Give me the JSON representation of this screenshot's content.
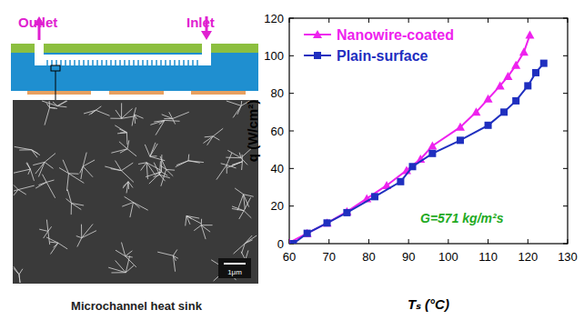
{
  "chart_data": {
    "type": "line",
    "xlabel": "Tₛ (°C)",
    "ylabel": "q (W/cm²)",
    "annotation": "G=571 kg/m²s",
    "xlim": [
      60,
      130
    ],
    "xticks": [
      60,
      70,
      80,
      90,
      100,
      110,
      120,
      130
    ],
    "ylim": [
      0,
      120
    ],
    "yticks": [
      0,
      20,
      40,
      60,
      80,
      100,
      120
    ],
    "legend": "upper-left",
    "series": [
      {
        "name": "Nanowire-coated",
        "color": "#ee22ee",
        "marker": "triangle",
        "x": [
          60,
          64.5,
          69.5,
          74.5,
          79.5,
          84.5,
          89.5,
          93,
          96,
          103,
          107,
          110,
          113,
          115,
          117,
          119,
          120.5
        ],
        "values": [
          0.5,
          5.5,
          11,
          17,
          24,
          31,
          39,
          45,
          52,
          62,
          70,
          77,
          84,
          89,
          95,
          102,
          111
        ]
      },
      {
        "name": "Plain-surface",
        "color": "#1f2fbf",
        "marker": "square",
        "x": [
          61,
          64.5,
          69.5,
          74.5,
          81.5,
          88,
          91,
          96,
          103,
          110,
          114,
          117,
          120,
          122,
          124
        ],
        "values": [
          0,
          5.5,
          11,
          16.5,
          25,
          33,
          41,
          48,
          55,
          63,
          70,
          76,
          84,
          91,
          96
        ]
      }
    ]
  },
  "diagram": {
    "outlet": "Outlet",
    "inlet": "Inlet",
    "scale_bar": "1μm",
    "caption": "Microchannel heat sink"
  }
}
